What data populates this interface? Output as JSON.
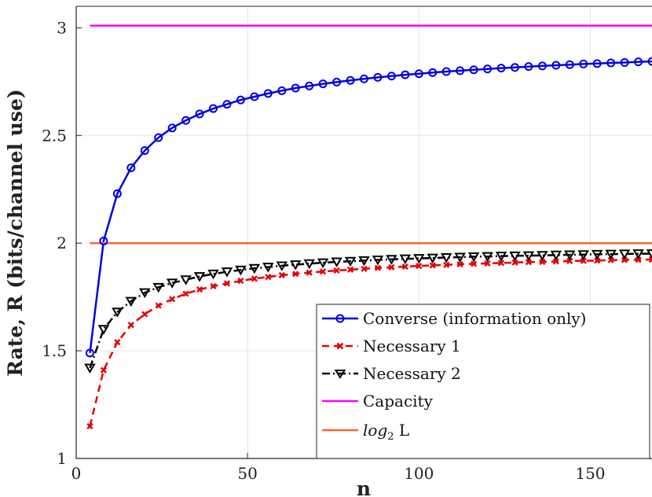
{
  "chart_data": {
    "type": "line",
    "xlabel": "n",
    "ylabel": "Rate, R (bits/channel use)",
    "xlim": [
      0,
      168
    ],
    "ylim": [
      1,
      3.1
    ],
    "xticks": [
      0,
      50,
      100,
      150
    ],
    "yticks": [
      1,
      1.5,
      2,
      2.5,
      3
    ],
    "xtick_labels": [
      "0",
      "50",
      "100",
      "150"
    ],
    "ytick_labels": [
      "1",
      "1.5",
      "2",
      "2.5",
      "3"
    ],
    "grid": true,
    "legend_position": "lower-right",
    "series": [
      {
        "name": "Converse (information only)",
        "color": "#0000e6",
        "line": "solid",
        "marker": "circle",
        "points": [
          [
            4,
            1.49
          ],
          [
            8,
            2.01
          ],
          [
            12,
            2.23
          ],
          [
            16,
            2.35
          ],
          [
            20,
            2.43
          ],
          [
            24,
            2.49
          ],
          [
            28,
            2.535
          ],
          [
            32,
            2.57
          ],
          [
            36,
            2.6
          ],
          [
            40,
            2.625
          ],
          [
            44,
            2.645
          ],
          [
            48,
            2.665
          ],
          [
            52,
            2.68
          ],
          [
            56,
            2.695
          ],
          [
            60,
            2.708
          ],
          [
            64,
            2.72
          ],
          [
            68,
            2.73
          ],
          [
            72,
            2.74
          ],
          [
            76,
            2.748
          ],
          [
            80,
            2.756
          ],
          [
            84,
            2.763
          ],
          [
            88,
            2.77
          ],
          [
            92,
            2.776
          ],
          [
            96,
            2.782
          ],
          [
            100,
            2.787
          ],
          [
            104,
            2.792
          ],
          [
            108,
            2.797
          ],
          [
            112,
            2.801
          ],
          [
            116,
            2.805
          ],
          [
            120,
            2.809
          ],
          [
            124,
            2.813
          ],
          [
            128,
            2.816
          ],
          [
            132,
            2.82
          ],
          [
            136,
            2.823
          ],
          [
            140,
            2.826
          ],
          [
            144,
            2.829
          ],
          [
            148,
            2.832
          ],
          [
            152,
            2.834
          ],
          [
            156,
            2.837
          ],
          [
            160,
            2.839
          ],
          [
            164,
            2.842
          ],
          [
            168,
            2.844
          ]
        ]
      },
      {
        "name": "Necessary 1",
        "color": "#e60000",
        "line": "dashed",
        "marker": "x",
        "points": [
          [
            4,
            1.15
          ],
          [
            8,
            1.41
          ],
          [
            12,
            1.54
          ],
          [
            16,
            1.62
          ],
          [
            20,
            1.67
          ],
          [
            24,
            1.71
          ],
          [
            28,
            1.74
          ],
          [
            32,
            1.765
          ],
          [
            36,
            1.785
          ],
          [
            40,
            1.8
          ],
          [
            44,
            1.813
          ],
          [
            48,
            1.825
          ],
          [
            52,
            1.835
          ],
          [
            56,
            1.843
          ],
          [
            60,
            1.851
          ],
          [
            64,
            1.857
          ],
          [
            68,
            1.863
          ],
          [
            72,
            1.868
          ],
          [
            76,
            1.873
          ],
          [
            80,
            1.877
          ],
          [
            84,
            1.881
          ],
          [
            88,
            1.885
          ],
          [
            92,
            1.888
          ],
          [
            96,
            1.891
          ],
          [
            100,
            1.894
          ],
          [
            104,
            1.897
          ],
          [
            108,
            1.899
          ],
          [
            112,
            1.902
          ],
          [
            116,
            1.904
          ],
          [
            120,
            1.906
          ],
          [
            124,
            1.908
          ],
          [
            128,
            1.91
          ],
          [
            132,
            1.912
          ],
          [
            136,
            1.913
          ],
          [
            140,
            1.915
          ],
          [
            144,
            1.917
          ],
          [
            148,
            1.918
          ],
          [
            152,
            1.919
          ],
          [
            156,
            1.921
          ],
          [
            160,
            1.922
          ],
          [
            164,
            1.923
          ],
          [
            168,
            1.924
          ]
        ]
      },
      {
        "name": "Necessary 2",
        "color": "#000000",
        "line": "dashdot",
        "marker": "triangle-down",
        "points": [
          [
            4,
            1.42
          ],
          [
            8,
            1.6
          ],
          [
            12,
            1.68
          ],
          [
            16,
            1.73
          ],
          [
            20,
            1.77
          ],
          [
            24,
            1.795
          ],
          [
            28,
            1.815
          ],
          [
            32,
            1.83
          ],
          [
            36,
            1.845
          ],
          [
            40,
            1.857
          ],
          [
            44,
            1.867
          ],
          [
            48,
            1.875
          ],
          [
            52,
            1.883
          ],
          [
            56,
            1.889
          ],
          [
            60,
            1.895
          ],
          [
            64,
            1.9
          ],
          [
            68,
            1.905
          ],
          [
            72,
            1.909
          ],
          [
            76,
            1.913
          ],
          [
            80,
            1.916
          ],
          [
            84,
            1.919
          ],
          [
            88,
            1.922
          ],
          [
            92,
            1.925
          ],
          [
            96,
            1.927
          ],
          [
            100,
            1.929
          ],
          [
            104,
            1.931
          ],
          [
            108,
            1.933
          ],
          [
            112,
            1.935
          ],
          [
            116,
            1.937
          ],
          [
            120,
            1.938
          ],
          [
            124,
            1.94
          ],
          [
            128,
            1.941
          ],
          [
            132,
            1.942
          ],
          [
            136,
            1.943
          ],
          [
            140,
            1.945
          ],
          [
            144,
            1.946
          ],
          [
            148,
            1.947
          ],
          [
            152,
            1.948
          ],
          [
            156,
            1.949
          ],
          [
            160,
            1.95
          ],
          [
            164,
            1.951
          ],
          [
            168,
            1.951
          ]
        ]
      },
      {
        "name": "Capacity",
        "color": "#ff00ff",
        "line": "solid",
        "marker": "none",
        "points": [
          [
            4,
            3.01
          ],
          [
            168,
            3.01
          ]
        ]
      },
      {
        "name": "log2 L",
        "color": "#f26a2e",
        "line": "solid",
        "marker": "none",
        "points": [
          [
            4,
            2.0
          ],
          [
            168,
            2.0
          ]
        ]
      }
    ]
  }
}
